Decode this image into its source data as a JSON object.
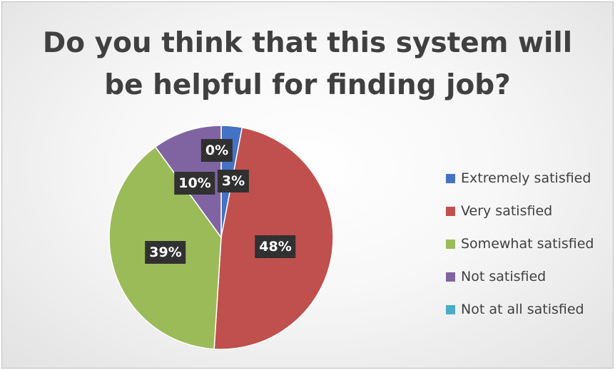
{
  "chart_data": {
    "type": "pie",
    "title_lines": [
      "Do you think that this system will",
      "be helpful for finding job?"
    ],
    "categories": [
      "Extremely satisfied",
      "Very satisfied",
      "Somewhat satisfied",
      "Not satisfied",
      "Not at all satisfied"
    ],
    "values": [
      3,
      48,
      39,
      10,
      0
    ],
    "data_labels": [
      "3%",
      "48%",
      "39%",
      "10%",
      "0%"
    ],
    "colors": [
      "#4472c4",
      "#c0504d",
      "#9bbb59",
      "#8064a2",
      "#4bacc6"
    ],
    "start_angle": "12 o'clock, clockwise",
    "legend_position": "right"
  }
}
